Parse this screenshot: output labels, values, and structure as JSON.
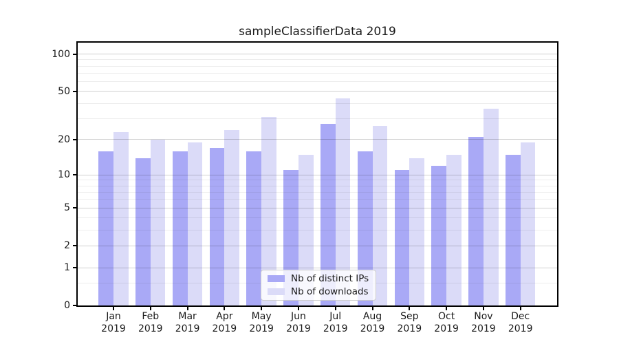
{
  "title": "sampleClassifierData 2019",
  "colors": {
    "distinct_ips_bar": "#a9a9f6",
    "downloads_bar": "#dbdbf8",
    "axis_spine": "#000000",
    "text": "#1a1a1a"
  },
  "legend": {
    "entries": [
      "Nb of distinct IPs",
      "Nb of downloads"
    ]
  },
  "chart_data": {
    "type": "bar",
    "title": "sampleClassifierData 2019",
    "categories": [
      [
        "Jan",
        "2019"
      ],
      [
        "Feb",
        "2019"
      ],
      [
        "Mar",
        "2019"
      ],
      [
        "Apr",
        "2019"
      ],
      [
        "May",
        "2019"
      ],
      [
        "Jun",
        "2019"
      ],
      [
        "Jul",
        "2019"
      ],
      [
        "Aug",
        "2019"
      ],
      [
        "Sep",
        "2019"
      ],
      [
        "Oct",
        "2019"
      ],
      [
        "Nov",
        "2019"
      ],
      [
        "Dec",
        "2019"
      ]
    ],
    "series": [
      {
        "name": "Nb of distinct IPs",
        "color": "#a9a9f6",
        "values": [
          16,
          14,
          16,
          17,
          16,
          11,
          27,
          16,
          11,
          12,
          21,
          15
        ]
      },
      {
        "name": "Nb of downloads",
        "color": "#dbdbf8",
        "values": [
          23,
          20,
          19,
          24,
          31,
          15,
          44,
          26,
          14,
          15,
          36,
          19
        ]
      }
    ],
    "xlabel": "",
    "ylabel": "",
    "yscale": "log1p",
    "ylim": [
      0,
      123.6
    ],
    "yticks_major": [
      0,
      1,
      2,
      5,
      10,
      20,
      50,
      100
    ],
    "yticks_minor": [
      0.5,
      3,
      4,
      6,
      7,
      8,
      9,
      30,
      40,
      60,
      70,
      80,
      90
    ],
    "grid": true,
    "grid_above_bars": true,
    "legend_position": "lower center"
  }
}
